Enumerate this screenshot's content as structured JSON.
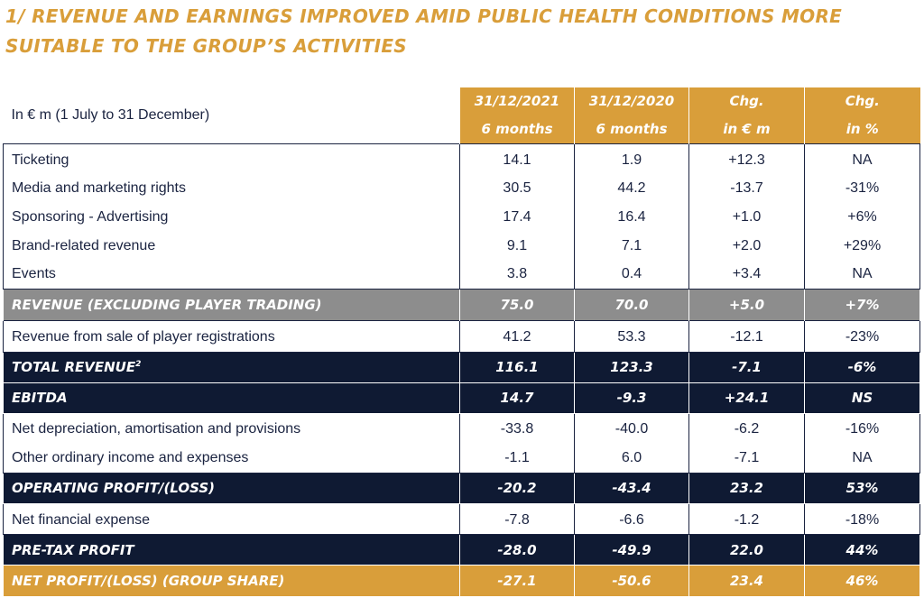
{
  "heading": "1/ REVENUE AND EARNINGS IMPROVED AMID PUBLIC HEALTH CONDITIONS MORE SUITABLE TO THE GROUP’S ACTIVITIES",
  "table": {
    "unit_label": "In € m (1 July to 31 December)",
    "columns": [
      {
        "line1": "31/12/2021",
        "line2": "6 months"
      },
      {
        "line1": "31/12/2020",
        "line2": "6 months"
      },
      {
        "line1": "Chg.",
        "line2": "in € m"
      },
      {
        "line1": "Chg.",
        "line2": "in %"
      }
    ],
    "ticketing": {
      "label": "Ticketing",
      "v2021": "14.1",
      "v2020": "1.9",
      "chg_abs": "+12.3",
      "chg_pct": "NA"
    },
    "media": {
      "label": "Media and marketing rights",
      "v2021": "30.5",
      "v2020": "44.2",
      "chg_abs": "-13.7",
      "chg_pct": "-31%"
    },
    "sponsoring": {
      "label": "Sponsoring - Advertising",
      "v2021": "17.4",
      "v2020": "16.4",
      "chg_abs": "+1.0",
      "chg_pct": "+6%"
    },
    "brand": {
      "label": "Brand-related revenue",
      "v2021": "9.1",
      "v2020": "7.1",
      "chg_abs": "+2.0",
      "chg_pct": "+29%"
    },
    "events": {
      "label": "Events",
      "v2021": "3.8",
      "v2020": "0.4",
      "chg_abs": "+3.4",
      "chg_pct": "NA"
    },
    "revenue_excl": {
      "label": "Revenue (excluding player trading)",
      "v2021": "75.0",
      "v2020": "70.0",
      "chg_abs": "+5.0",
      "chg_pct": "+7%"
    },
    "player_sales": {
      "label": "Revenue from sale of player registrations",
      "v2021": "41.2",
      "v2020": "53.3",
      "chg_abs": "-12.1",
      "chg_pct": "-23%"
    },
    "total_revenue": {
      "label": "Total revenue",
      "footnote": "2",
      "v2021": "116.1",
      "v2020": "123.3",
      "chg_abs": "-7.1",
      "chg_pct": "-6%"
    },
    "ebitda": {
      "label": "EBITDA",
      "v2021": "14.7",
      "v2020": "-9.3",
      "chg_abs": "+24.1",
      "chg_pct": "NS"
    },
    "depreciation": {
      "label": "Net depreciation, amortisation and provisions",
      "v2021": "-33.8",
      "v2020": "-40.0",
      "chg_abs": "-6.2",
      "chg_pct": "-16%"
    },
    "other_ordinary": {
      "label": "Other ordinary income and expenses",
      "v2021": "-1.1",
      "v2020": "6.0",
      "chg_abs": "-7.1",
      "chg_pct": "NA"
    },
    "operating": {
      "label": "Operating profit/(loss)",
      "v2021": "-20.2",
      "v2020": "-43.4",
      "chg_abs": "23.2",
      "chg_pct": "53%"
    },
    "financial": {
      "label": "Net financial expense",
      "v2021": "-7.8",
      "v2020": "-6.6",
      "chg_abs": "-1.2",
      "chg_pct": "-18%"
    },
    "pretax": {
      "label": "Pre-tax profit",
      "v2021": "-28.0",
      "v2020": "-49.9",
      "chg_abs": "22.0",
      "chg_pct": "44%"
    },
    "net_profit": {
      "label": "Net profit/(loss) (Group share)",
      "v2021": "-27.1",
      "v2020": "-50.6",
      "chg_abs": "23.4",
      "chg_pct": "46%"
    }
  },
  "colors": {
    "gold": "#d99e3a",
    "navy": "#0f1a33",
    "grey": "#8d8d8d",
    "text": "#1a2340"
  }
}
